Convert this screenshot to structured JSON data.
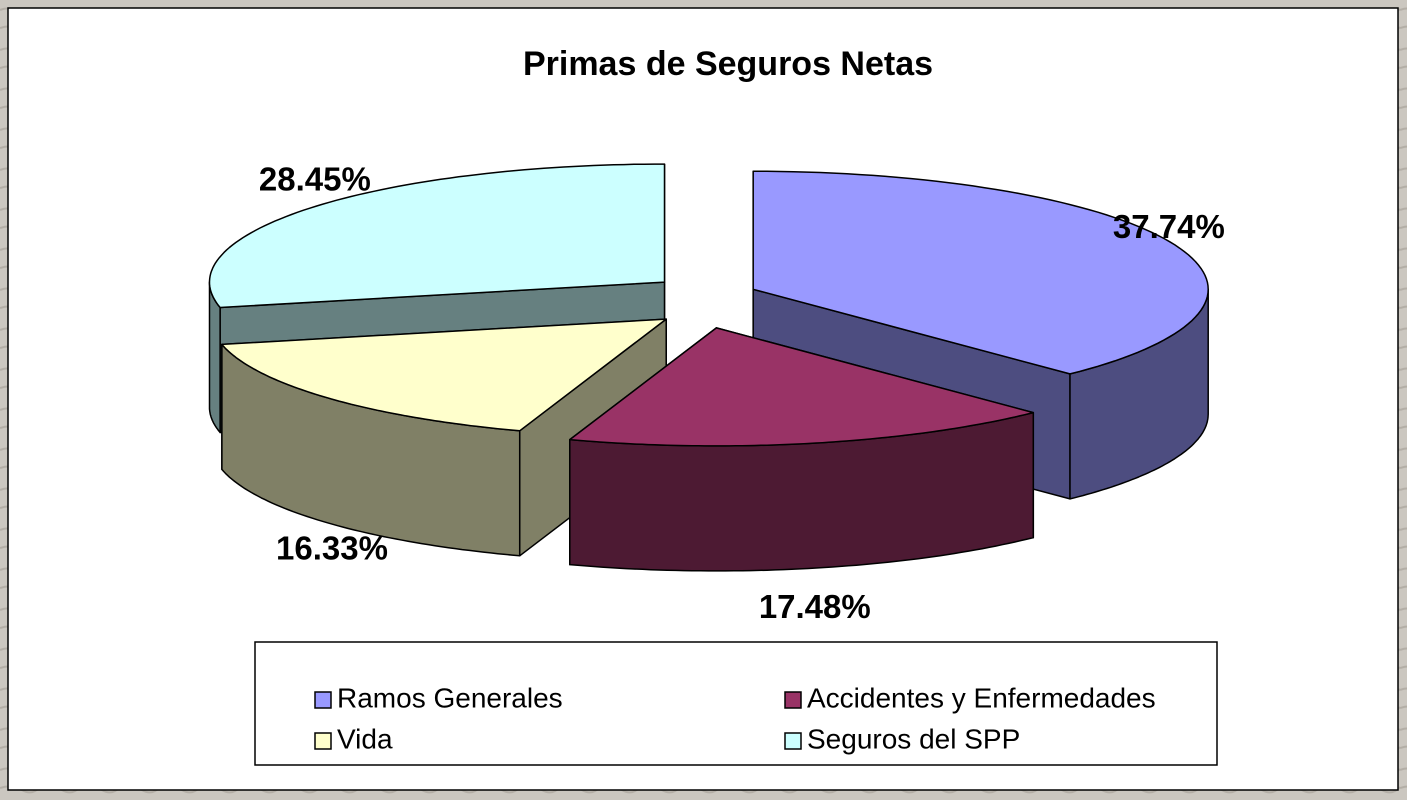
{
  "chart_data": {
    "type": "pie",
    "title": "Primas de Seguros Netas",
    "categories": [
      "Ramos Generales",
      "Accidentes y Enfermedades",
      "Vida",
      "Seguros del SPP"
    ],
    "values": [
      37.74,
      17.48,
      16.33,
      28.45
    ],
    "value_labels": [
      "37.74%",
      "17.48%",
      "16.33%",
      "28.45%"
    ],
    "colors": [
      "#9999ff",
      "#993366",
      "#ffffcc",
      "#ccffff"
    ],
    "legend": "bottom"
  }
}
